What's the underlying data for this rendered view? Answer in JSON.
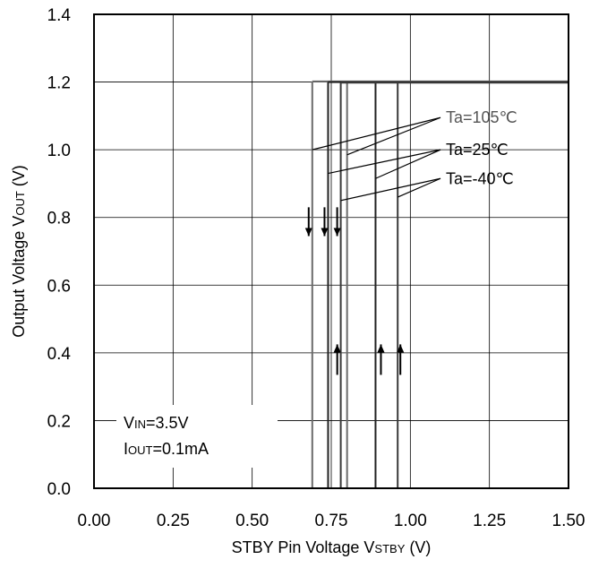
{
  "chart_data": {
    "type": "line",
    "xlabel_main": "STBY Pin Voltage V",
    "xlabel_sub": "STBY",
    "xlabel_unit": " (V)",
    "ylabel_main": "Output Voltage V",
    "ylabel_sub": "OUT",
    "ylabel_unit": " (V)",
    "xlim": [
      0.0,
      1.5
    ],
    "ylim": [
      0.0,
      1.4
    ],
    "xticks": [
      "0.00",
      "0.25",
      "0.50",
      "0.75",
      "1.00",
      "1.25",
      "1.50"
    ],
    "yticks": [
      "0.0",
      "0.2",
      "0.4",
      "0.6",
      "0.8",
      "1.0",
      "1.2",
      "1.4"
    ],
    "grid": true,
    "series": [
      {
        "name": "Ta=105℃",
        "color": "#6b6b6b",
        "falling_threshold": 0.69,
        "rising_threshold": 0.8,
        "vout_high": 1.2
      },
      {
        "name": "Ta=25℃",
        "color": "#222222",
        "falling_threshold": 0.74,
        "rising_threshold": 0.89,
        "vout_high": 1.2
      },
      {
        "name": "Ta=-40℃",
        "color": "#3a3a3a",
        "falling_threshold": 0.78,
        "rising_threshold": 0.96,
        "vout_high": 1.2
      }
    ],
    "conditions": {
      "vin_main": "V",
      "vin_sub": "IN",
      "vin_value": "=3.5V",
      "iout_main": "I",
      "iout_sub": "OUT",
      "iout_value": "=0.1mA"
    }
  }
}
